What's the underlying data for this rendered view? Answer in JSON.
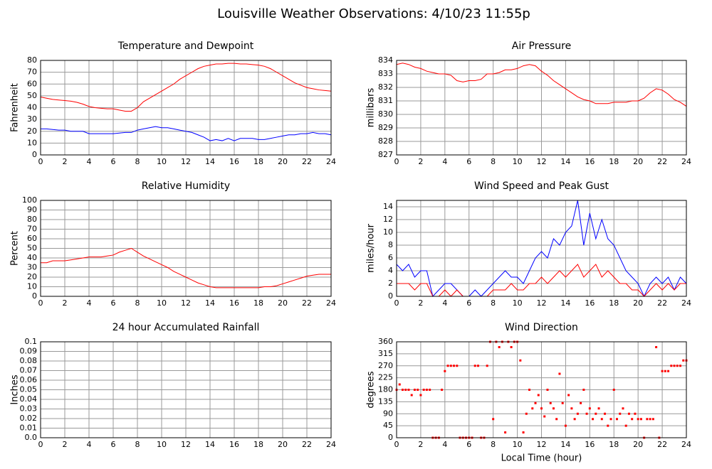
{
  "title": "Louisville Weather Observations: 4/10/23 11:55p",
  "chart_data": [
    {
      "type": "line",
      "title": "Temperature and Dewpoint",
      "ylabel": "Fahrenheit",
      "grid": true,
      "x": [
        0,
        0.5,
        1,
        1.5,
        2,
        2.5,
        3,
        3.5,
        4,
        4.5,
        5,
        5.5,
        6,
        6.5,
        7,
        7.5,
        8,
        8.5,
        9,
        9.5,
        10,
        10.5,
        11,
        11.5,
        12,
        12.5,
        13,
        13.5,
        14,
        14.5,
        15,
        15.5,
        16,
        16.5,
        17,
        17.5,
        18,
        18.5,
        19,
        19.5,
        20,
        20.5,
        21,
        21.5,
        22,
        22.5,
        23,
        23.5,
        24
      ],
      "series": [
        {
          "color": "#ff0000",
          "values": [
            49,
            48,
            47,
            46.5,
            46,
            45.5,
            44.5,
            43,
            41,
            40,
            39.5,
            39,
            39,
            38,
            37,
            37,
            40,
            45,
            48,
            51,
            54,
            57,
            60,
            64,
            67,
            70,
            73,
            75,
            76,
            77,
            77,
            77.5,
            77.5,
            77,
            77,
            76.5,
            76,
            75,
            73,
            70,
            67,
            64,
            61,
            59,
            57,
            56,
            55,
            54.5,
            54
          ]
        },
        {
          "color": "#0000ff",
          "values": [
            22,
            22,
            21.5,
            21,
            21,
            20,
            20,
            20,
            18,
            18,
            18,
            18,
            18,
            18.5,
            19,
            19,
            21,
            22,
            23,
            24,
            23,
            23,
            22,
            21,
            20,
            19,
            17,
            15,
            12,
            13,
            12,
            14,
            12,
            14,
            14,
            14,
            13,
            13,
            14,
            15,
            16,
            17,
            17,
            18,
            18,
            19,
            18,
            18,
            17
          ]
        }
      ],
      "xlim": [
        0,
        24
      ],
      "xticks": [
        0,
        2,
        4,
        6,
        8,
        10,
        12,
        14,
        16,
        18,
        20,
        22,
        24
      ],
      "ylim": [
        0,
        80
      ],
      "yticks": [
        0,
        10,
        20,
        30,
        40,
        50,
        60,
        70,
        80
      ]
    },
    {
      "type": "line",
      "title": "Air Pressure",
      "ylabel": "millibars",
      "grid": true,
      "x": [
        0,
        0.5,
        1,
        1.5,
        2,
        2.5,
        3,
        3.5,
        4,
        4.5,
        5,
        5.5,
        6,
        6.5,
        7,
        7.5,
        8,
        8.5,
        9,
        9.5,
        10,
        10.5,
        11,
        11.5,
        12,
        12.5,
        13,
        13.5,
        14,
        14.5,
        15,
        15.5,
        16,
        16.5,
        17,
        17.5,
        18,
        18.5,
        19,
        19.5,
        20,
        20.5,
        21,
        21.5,
        22,
        22.5,
        23,
        23.5,
        24
      ],
      "series": [
        {
          "color": "#ff0000",
          "values": [
            833.7,
            833.8,
            833.7,
            833.5,
            833.4,
            833.2,
            833.1,
            833,
            833,
            832.9,
            832.5,
            832.4,
            832.5,
            832.5,
            832.6,
            833,
            833,
            833.1,
            833.3,
            833.3,
            833.4,
            833.6,
            833.7,
            833.6,
            833.2,
            832.9,
            832.5,
            832.2,
            831.9,
            831.6,
            831.3,
            831.1,
            831,
            830.8,
            830.8,
            830.8,
            830.9,
            830.9,
            830.9,
            831,
            831,
            831.2,
            831.6,
            831.9,
            831.8,
            831.5,
            831.1,
            830.9,
            830.6
          ]
        }
      ],
      "xlim": [
        0,
        24
      ],
      "xticks": [
        0,
        2,
        4,
        6,
        8,
        10,
        12,
        14,
        16,
        18,
        20,
        22,
        24
      ],
      "ylim": [
        827,
        834
      ],
      "yticks": [
        827,
        828,
        829,
        830,
        831,
        832,
        833,
        834
      ]
    },
    {
      "type": "line",
      "title": "Relative Humidity",
      "ylabel": "Percent",
      "grid": true,
      "x": [
        0,
        0.5,
        1,
        1.5,
        2,
        2.5,
        3,
        3.5,
        4,
        4.5,
        5,
        5.5,
        6,
        6.5,
        7,
        7.5,
        8,
        8.5,
        9,
        9.5,
        10,
        10.5,
        11,
        11.5,
        12,
        12.5,
        13,
        13.5,
        14,
        14.5,
        15,
        15.5,
        16,
        16.5,
        17,
        17.5,
        18,
        18.5,
        19,
        19.5,
        20,
        20.5,
        21,
        21.5,
        22,
        22.5,
        23,
        23.5,
        24
      ],
      "series": [
        {
          "color": "#ff0000",
          "values": [
            35,
            35,
            37,
            37,
            37,
            38,
            39,
            40,
            41,
            41,
            41,
            42,
            43,
            46,
            48,
            50,
            46,
            42,
            39,
            36,
            33,
            30,
            26,
            23,
            20,
            17,
            14,
            12,
            10,
            9,
            9,
            9,
            9,
            9,
            9,
            9,
            9,
            10,
            10,
            11,
            13,
            15,
            17,
            19,
            21,
            22,
            23,
            23,
            23
          ]
        }
      ],
      "xlim": [
        0,
        24
      ],
      "xticks": [
        0,
        2,
        4,
        6,
        8,
        10,
        12,
        14,
        16,
        18,
        20,
        22,
        24
      ],
      "ylim": [
        0,
        100
      ],
      "yticks": [
        0,
        10,
        20,
        30,
        40,
        50,
        60,
        70,
        80,
        90,
        100
      ]
    },
    {
      "type": "line",
      "title": "Wind Speed and Peak Gust",
      "ylabel": "miles/hour",
      "grid": true,
      "x": [
        0,
        0.5,
        1,
        1.5,
        2,
        2.5,
        3,
        3.5,
        4,
        4.5,
        5,
        5.5,
        6,
        6.5,
        7,
        7.5,
        8,
        8.5,
        9,
        9.5,
        10,
        10.5,
        11,
        11.5,
        12,
        12.5,
        13,
        13.5,
        14,
        14.5,
        15,
        15.5,
        16,
        16.5,
        17,
        17.5,
        18,
        18.5,
        19,
        19.5,
        20,
        20.5,
        21,
        21.5,
        22,
        22.5,
        23,
        23.5,
        24
      ],
      "series": [
        {
          "color": "#0000ff",
          "values": [
            5,
            4,
            5,
            3,
            4,
            4,
            0,
            1,
            2,
            2,
            1,
            0,
            0,
            1,
            0,
            1,
            2,
            3,
            4,
            3,
            3,
            2,
            4,
            6,
            7,
            6,
            9,
            8,
            10,
            11,
            15,
            8,
            13,
            9,
            12,
            9,
            8,
            6,
            4,
            3,
            2,
            0,
            2,
            3,
            2,
            3,
            1,
            3,
            2
          ]
        },
        {
          "color": "#ff0000",
          "values": [
            2,
            2,
            2,
            1,
            2,
            2,
            0,
            0,
            1,
            0,
            1,
            0,
            0,
            0,
            0,
            0,
            1,
            1,
            1,
            2,
            1,
            1,
            2,
            2,
            3,
            2,
            3,
            4,
            3,
            4,
            5,
            3,
            4,
            5,
            3,
            4,
            3,
            2,
            2,
            1,
            1,
            0,
            1,
            2,
            1,
            2,
            1,
            2,
            2
          ]
        }
      ],
      "xlim": [
        0,
        24
      ],
      "xticks": [
        0,
        2,
        4,
        6,
        8,
        10,
        12,
        14,
        16,
        18,
        20,
        22,
        24
      ],
      "ylim": [
        0,
        15
      ],
      "yticks": [
        0,
        2,
        4,
        6,
        8,
        10,
        12,
        14
      ]
    },
    {
      "type": "line",
      "title": "24 hour Accumulated Rainfall",
      "ylabel": "Inches",
      "grid": true,
      "x": [
        0,
        24
      ],
      "series": [
        {
          "color": "#ff0000",
          "values": [
            0,
            0
          ]
        }
      ],
      "xlim": [
        0,
        24
      ],
      "xticks": [
        0,
        2,
        4,
        6,
        8,
        10,
        12,
        14,
        16,
        18,
        20,
        22,
        24
      ],
      "ylim": [
        0,
        0.1
      ],
      "yticks": [
        {
          "value": 0,
          "label": "0.0"
        },
        0.01,
        0.02,
        0.03,
        0.04,
        0.05,
        0.06,
        0.07,
        0.08,
        0.09,
        0.1
      ]
    },
    {
      "type": "scatter",
      "title": "Wind Direction",
      "ylabel": "degrees",
      "xlabel": "Local Time (hour)",
      "grid": true,
      "color": "#ff0000",
      "x": [
        0,
        0.25,
        0.5,
        0.75,
        1,
        1.25,
        1.5,
        1.75,
        2,
        2.25,
        2.5,
        2.75,
        3,
        3.25,
        3.5,
        3.75,
        4,
        4.25,
        4.5,
        4.75,
        5,
        5.25,
        5.5,
        5.75,
        6,
        6.25,
        6.5,
        6.75,
        7,
        7.25,
        7.5,
        7.75,
        8,
        8.25,
        8.5,
        8.75,
        9,
        9.25,
        9.5,
        9.75,
        10,
        10.25,
        10.5,
        10.75,
        11,
        11.25,
        11.5,
        11.75,
        12,
        12.25,
        12.5,
        12.75,
        13,
        13.25,
        13.5,
        13.75,
        14,
        14.25,
        14.5,
        14.75,
        15,
        15.25,
        15.5,
        15.75,
        16,
        16.25,
        16.5,
        16.75,
        17,
        17.25,
        17.5,
        17.75,
        18,
        18.25,
        18.5,
        18.75,
        19,
        19.25,
        19.5,
        19.75,
        20,
        20.25,
        20.5,
        20.75,
        21,
        21.25,
        21.5,
        21.75,
        22,
        22.25,
        22.5,
        22.75,
        23,
        23.25,
        23.5,
        23.75,
        24
      ],
      "values": [
        180,
        200,
        180,
        180,
        180,
        160,
        180,
        180,
        160,
        180,
        180,
        180,
        0,
        0,
        0,
        180,
        250,
        270,
        270,
        270,
        270,
        0,
        0,
        0,
        0,
        0,
        270,
        270,
        0,
        0,
        270,
        360,
        70,
        360,
        340,
        360,
        20,
        360,
        340,
        360,
        360,
        290,
        20,
        90,
        180,
        110,
        130,
        160,
        110,
        80,
        180,
        130,
        110,
        70,
        240,
        130,
        45,
        160,
        110,
        70,
        90,
        130,
        180,
        90,
        110,
        70,
        90,
        110,
        70,
        90,
        45,
        70,
        180,
        70,
        90,
        110,
        45,
        90,
        70,
        90,
        70,
        70,
        0,
        70,
        70,
        70,
        340,
        0,
        250,
        250,
        250,
        270,
        270,
        270,
        270,
        290,
        290
      ],
      "xlim": [
        0,
        24
      ],
      "xticks": [
        0,
        2,
        4,
        6,
        8,
        10,
        12,
        14,
        16,
        18,
        20,
        22,
        24
      ],
      "ylim": [
        0,
        360
      ],
      "yticks": [
        0,
        45,
        90,
        135,
        180,
        225,
        270,
        315,
        360
      ]
    }
  ]
}
